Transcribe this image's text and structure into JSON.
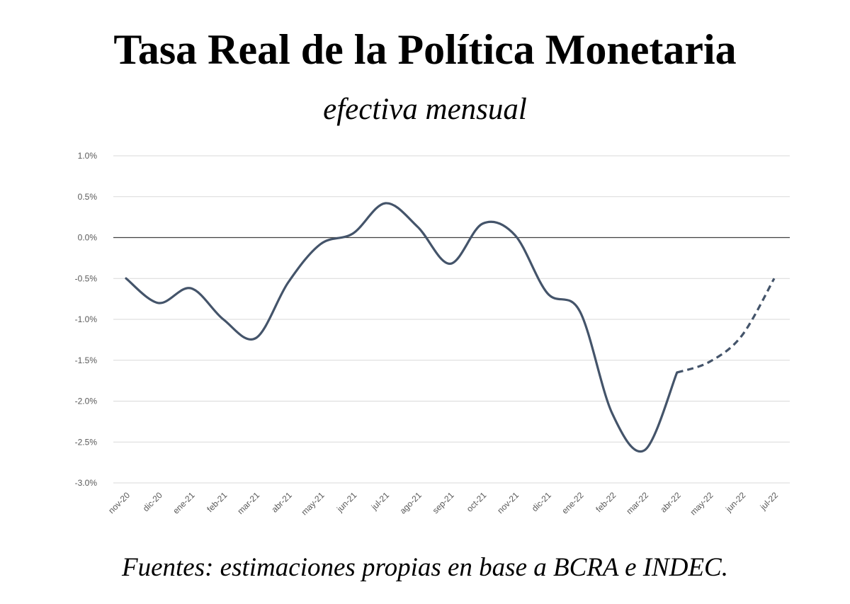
{
  "title": "Tasa Real de la Política Monetaria",
  "subtitle": "efectiva mensual",
  "source": "Fuentes: estimaciones propias en base a BCRA e INDEC.",
  "colors": {
    "line": "#44546a",
    "grid": "#d9d9d9",
    "zero_line": "#404040",
    "tick_text": "#595959"
  },
  "chart_data": {
    "type": "line",
    "title": "Tasa Real de la Política Monetaria",
    "subtitle": "efectiva mensual",
    "xlabel": "",
    "ylabel": "",
    "grid": true,
    "ylim": [
      -3.0,
      1.0
    ],
    "yticks": [
      1.0,
      0.5,
      0.0,
      -0.5,
      -1.0,
      -1.5,
      -2.0,
      -2.5,
      -3.0
    ],
    "ytick_labels": [
      "1.0%",
      "0.5%",
      "0.0%",
      "-0.5%",
      "-1.0%",
      "-1.5%",
      "-2.0%",
      "-2.5%",
      "-3.0%"
    ],
    "categories": [
      "nov-20",
      "dic-20",
      "ene-21",
      "feb-21",
      "mar-21",
      "abr-21",
      "may-21",
      "jun-21",
      "jul-21",
      "ago-21",
      "sep-21",
      "oct-21",
      "nov-21",
      "dic-21",
      "ene-22",
      "feb-22",
      "mar-22",
      "abr-22",
      "may-22",
      "jun-22",
      "jul-22"
    ],
    "series": [
      {
        "values": [
          -0.5,
          -0.8,
          -0.62,
          -1.0,
          -1.23,
          -0.55,
          -0.08,
          0.05,
          0.42,
          0.13,
          -0.32,
          0.17,
          0.03,
          -0.68,
          -0.9,
          -2.15,
          -2.6,
          -1.65,
          -1.52,
          -1.2,
          -0.5
        ],
        "solid_until_index": 17,
        "projected_from_index": 17
      }
    ]
  }
}
